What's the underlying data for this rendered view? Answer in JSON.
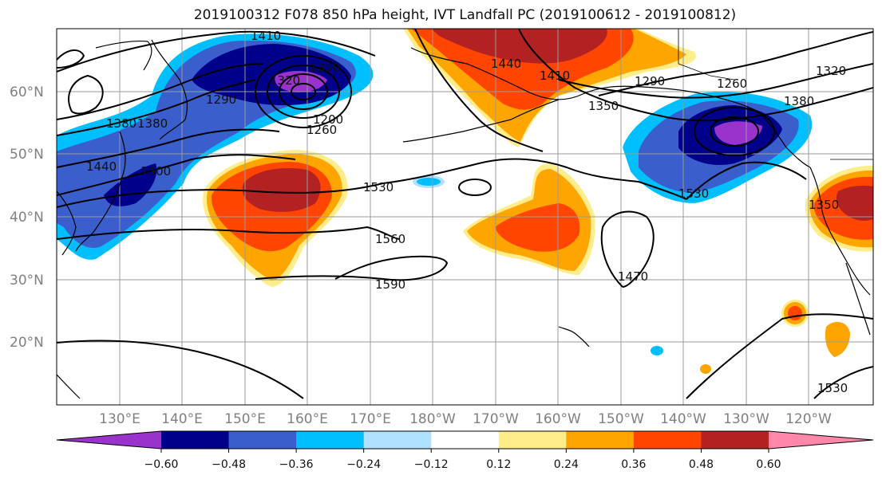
{
  "title": "2019100312 F078 850 hPa height, IVT Landfall PC (2019100612 - 2019100812)",
  "latitude_labels": [
    "60°N",
    "50°N",
    "40°N",
    "30°N",
    "20°N"
  ],
  "longitude_labels": [
    "130°E",
    "140°E",
    "150°E",
    "160°E",
    "170°E",
    "180°W",
    "170°W",
    "160°W",
    "150°W",
    "140°W",
    "130°W",
    "120°W"
  ],
  "contour_labels": [
    "1410",
    "1350",
    "1380",
    "1320",
    "1440",
    "1500",
    "1380",
    "1290",
    "1260",
    "1200",
    "1530",
    "1560",
    "1590",
    "1440",
    "1410",
    "1350",
    "1290",
    "1260",
    "1320",
    "1380",
    "1530",
    "1470",
    "1530",
    "1350"
  ],
  "colorbar": {
    "ticks": [
      "−0.60",
      "−0.48",
      "−0.36",
      "−0.24",
      "−0.12",
      "0.12",
      "0.24",
      "0.36",
      "0.48",
      "0.60"
    ],
    "colors": [
      "#9933cc",
      "#00008b",
      "#3a5fcd",
      "#00bfff",
      "#b0e2ff",
      "#ffffff",
      "#ffec8b",
      "#ffa500",
      "#ff4500",
      "#b22222",
      "#ff88aa"
    ]
  }
}
